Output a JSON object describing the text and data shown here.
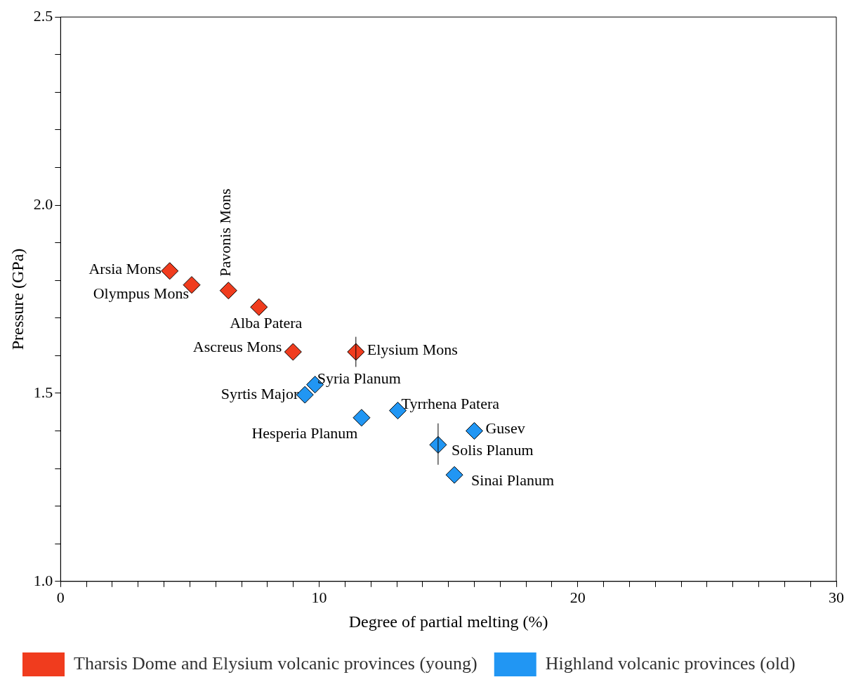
{
  "chart_data": {
    "type": "scatter",
    "xlabel": "Degree of partial melting (%)",
    "ylabel": "Pressure (GPa)",
    "xlim": [
      0,
      30
    ],
    "ylim": [
      1.0,
      2.5
    ],
    "xticks": [
      0,
      {
        "value": 1,
        "label": null
      },
      {
        "value": 2,
        "label": null
      },
      {
        "value": 3,
        "label": null
      },
      {
        "value": 4,
        "label": null
      },
      {
        "value": 5,
        "label": null
      },
      {
        "value": 6,
        "label": null
      },
      {
        "value": 7,
        "label": null
      },
      {
        "value": 8,
        "label": null
      },
      {
        "value": 9,
        "label": null
      },
      10,
      {
        "value": 11,
        "label": null
      },
      {
        "value": 12,
        "label": null
      },
      {
        "value": 13,
        "label": null
      },
      {
        "value": 14,
        "label": null
      },
      {
        "value": 15,
        "label": null
      },
      {
        "value": 16,
        "label": null
      },
      {
        "value": 17,
        "label": null
      },
      {
        "value": 18,
        "label": null
      },
      {
        "value": 19,
        "label": null
      },
      20,
      {
        "value": 21,
        "label": null
      },
      {
        "value": 22,
        "label": null
      },
      {
        "value": 23,
        "label": null
      },
      {
        "value": 24,
        "label": null
      },
      {
        "value": 25,
        "label": null
      },
      {
        "value": 26,
        "label": null
      },
      {
        "value": 27,
        "label": null
      },
      {
        "value": 28,
        "label": null
      },
      {
        "value": 29,
        "label": null
      },
      30
    ],
    "yticks": [
      {
        "value": 1.0,
        "label": "1.0"
      },
      {
        "value": 1.1,
        "label": null
      },
      {
        "value": 1.2,
        "label": null
      },
      {
        "value": 1.3,
        "label": null
      },
      {
        "value": 1.4,
        "label": null
      },
      {
        "value": 1.5,
        "label": "1.5"
      },
      {
        "value": 1.6,
        "label": null
      },
      {
        "value": 1.7,
        "label": null
      },
      {
        "value": 1.8,
        "label": null
      },
      {
        "value": 1.9,
        "label": null
      },
      {
        "value": 2.0,
        "label": "2.0"
      },
      {
        "value": 2.1,
        "label": null
      },
      {
        "value": 2.2,
        "label": null
      },
      {
        "value": 2.3,
        "label": null
      },
      {
        "value": 2.4,
        "label": null
      },
      {
        "value": 2.5,
        "label": "2.5"
      }
    ],
    "grid": false,
    "legend": "bottom",
    "marker": "diamond",
    "series": [
      {
        "name": "Tharsis Dome and Elysium volcanic provinces (young)",
        "color": "#f03c1e",
        "x": [
          4.22,
          5.07,
          6.49,
          7.67,
          8.99,
          11.42
        ],
        "values": [
          1.825,
          1.788,
          1.773,
          1.729,
          1.61,
          1.61
        ],
        "errors": [
          null,
          null,
          null,
          null,
          null,
          [
            1.57,
            1.65
          ]
        ]
      },
      {
        "name": "Highland volcanic provinces (old)",
        "color": "#2196f3",
        "x": [
          9.84,
          9.45,
          11.64,
          13.04,
          16.0,
          14.6,
          15.23
        ],
        "values": [
          1.523,
          1.496,
          1.435,
          1.454,
          1.4,
          1.363,
          1.283
        ],
        "errors": [
          null,
          null,
          null,
          null,
          null,
          [
            1.31,
            1.42
          ],
          null
        ]
      }
    ],
    "annotations": [
      {
        "text": "Arsia Mons",
        "x": 4.22,
        "y": 1.825
      },
      {
        "text": "Olympus Mons",
        "x": 5.07,
        "y": 1.788
      },
      {
        "text": "Pavonis Mons",
        "x": 6.49,
        "y": 1.773
      },
      {
        "text": "Alba Patera",
        "x": 7.67,
        "y": 1.729
      },
      {
        "text": "Ascreus Mons",
        "x": 8.99,
        "y": 1.61
      },
      {
        "text": "Elysium Mons",
        "x": 11.42,
        "y": 1.61
      },
      {
        "text": "Syria Planum",
        "x": 9.84,
        "y": 1.523
      },
      {
        "text": "Syrtis Major",
        "x": 9.45,
        "y": 1.496
      },
      {
        "text": "Hesperia Planum",
        "x": 11.64,
        "y": 1.435
      },
      {
        "text": "Tyrrhena Patera",
        "x": 13.04,
        "y": 1.454
      },
      {
        "text": "Gusev",
        "x": 16.0,
        "y": 1.4
      },
      {
        "text": "Solis Planum",
        "x": 14.6,
        "y": 1.363
      },
      {
        "text": "Sinai Planum",
        "x": 15.23,
        "y": 1.283
      }
    ]
  }
}
